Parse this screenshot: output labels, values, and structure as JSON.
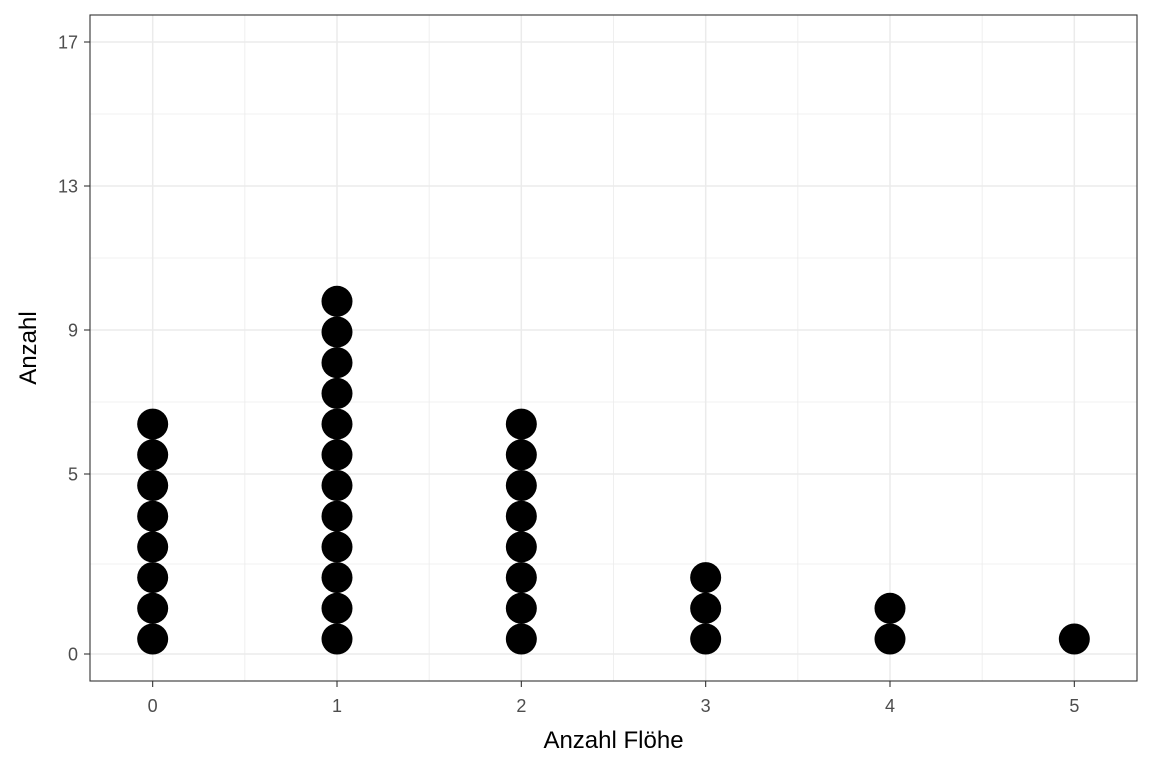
{
  "chart_data": {
    "type": "dotplot",
    "xlabel": "Anzahl Flöhe",
    "ylabel": "Anzahl",
    "xlim": [
      -0.34,
      5.34
    ],
    "ylim": [
      -0.75,
      17.75
    ],
    "x_ticks": [
      0,
      1,
      2,
      3,
      4,
      5
    ],
    "y_ticks": [
      0,
      5,
      9,
      13,
      17
    ],
    "x_tick_labels": [
      "0",
      "1",
      "2",
      "3",
      "4",
      "5"
    ],
    "y_tick_labels": [
      "0",
      "5",
      "9",
      "13",
      "17"
    ],
    "categories": [
      0,
      1,
      2,
      3,
      4,
      5
    ],
    "values": [
      8,
      12,
      8,
      3,
      2,
      1
    ],
    "grid": true,
    "dot_color": "#000000",
    "grid_color": "#ebebeb",
    "panel_border_color": "#333333"
  }
}
